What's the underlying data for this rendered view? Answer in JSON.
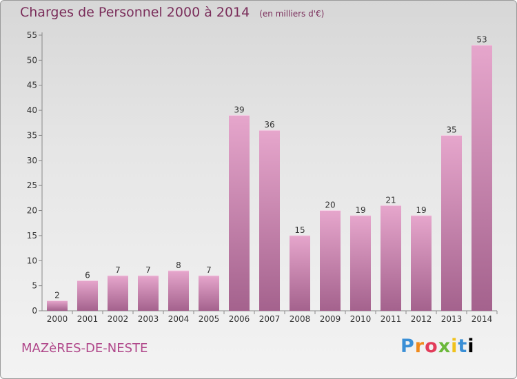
{
  "header": {
    "title": "Charges de Personnel 2000 à 2014",
    "unit": "(en milliers d'€)"
  },
  "footer": {
    "place": "MAZèRES-DE-NESTE",
    "logo": [
      "P",
      "r",
      "o",
      "x",
      "i",
      "t",
      "i"
    ]
  },
  "colors": {
    "bar_top": "#e6a6cc",
    "bar_bottom": "#a4628d",
    "title": "#7a2d5a",
    "place": "#b0478a"
  },
  "chart_data": {
    "type": "bar",
    "title": "Charges de Personnel 2000 à 2014",
    "subtitle": "(en milliers d'€)",
    "categories": [
      "2000",
      "2001",
      "2002",
      "2003",
      "2004",
      "2005",
      "2006",
      "2007",
      "2008",
      "2009",
      "2010",
      "2011",
      "2012",
      "2013",
      "2014"
    ],
    "values": [
      2,
      6,
      7,
      7,
      8,
      7,
      39,
      36,
      15,
      20,
      19,
      21,
      19,
      35,
      53
    ],
    "ylim": [
      0,
      55
    ],
    "yticks": [
      0,
      5,
      10,
      15,
      20,
      25,
      30,
      35,
      40,
      45,
      50,
      55
    ],
    "grid": false
  }
}
